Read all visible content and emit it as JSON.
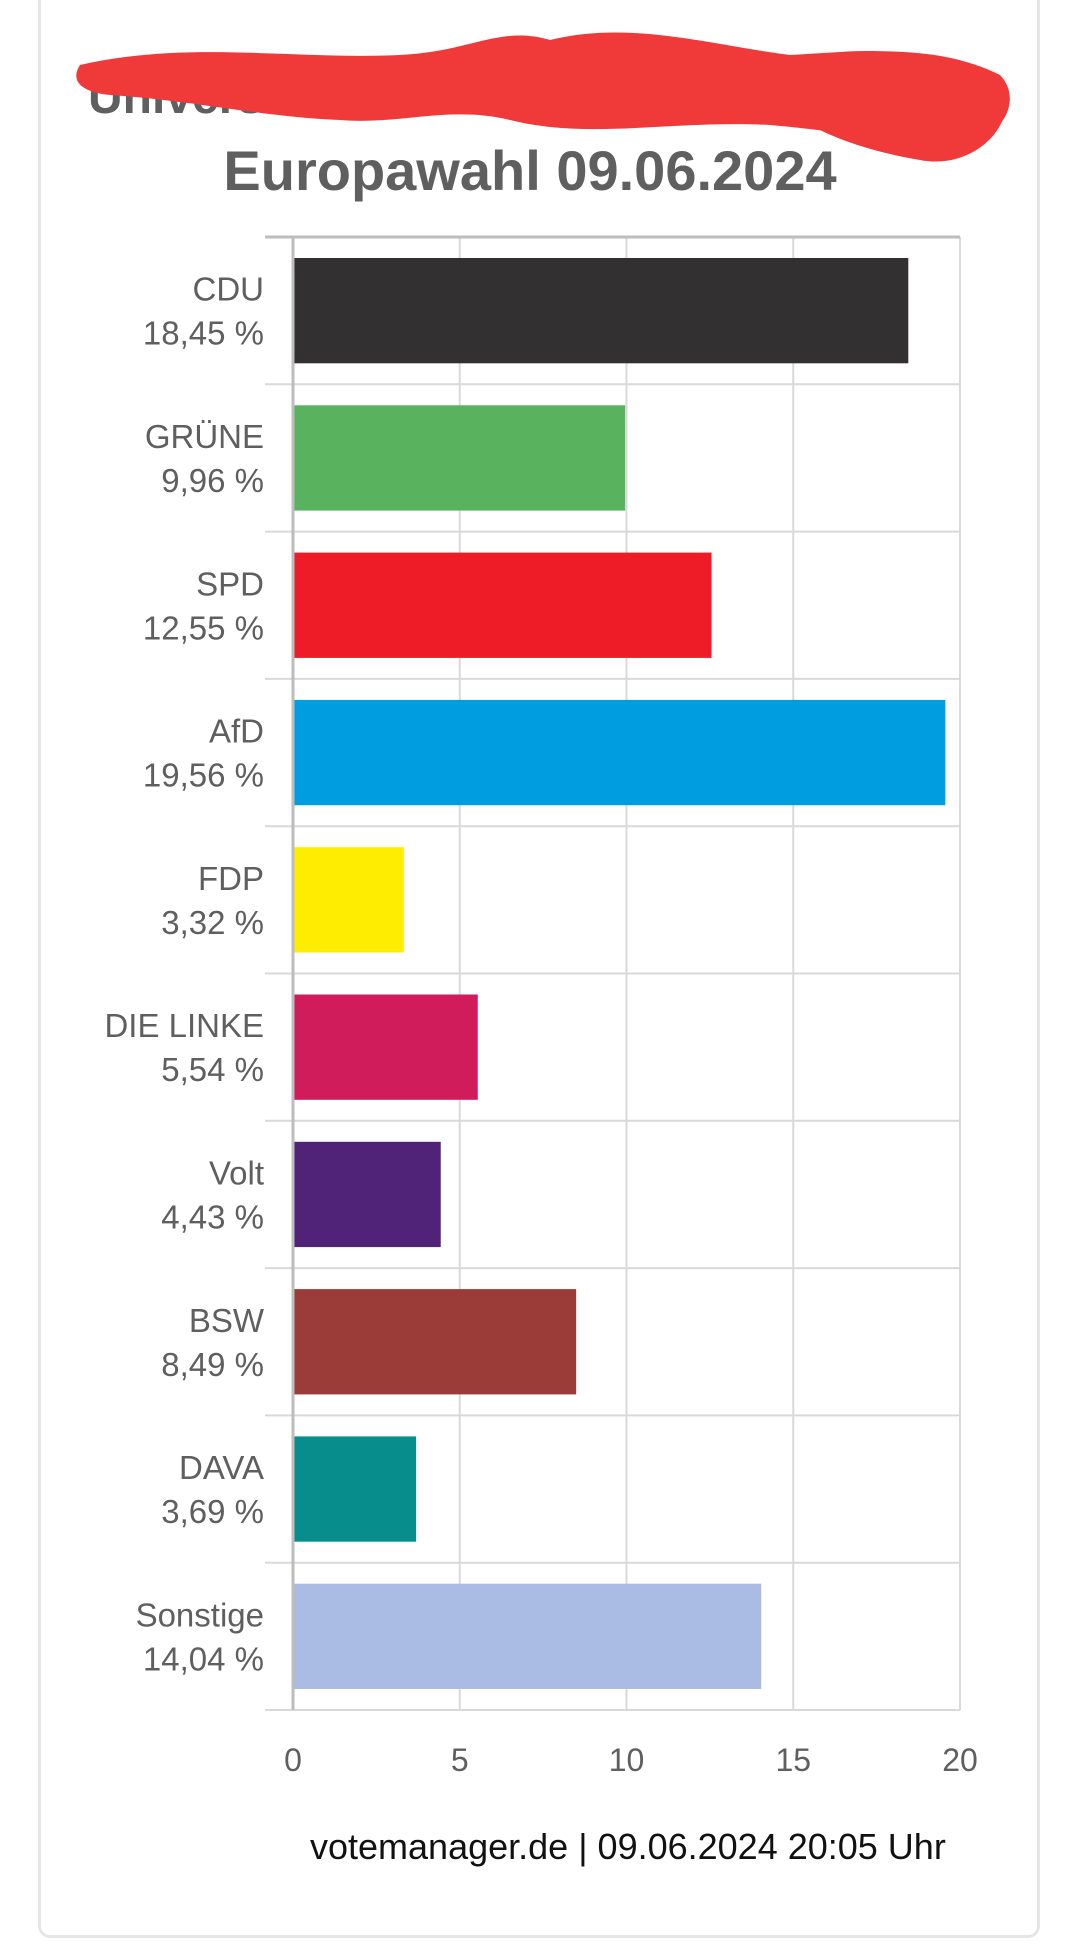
{
  "page": {
    "subtitle": "Universit",
    "title": "Europawahl 09.06.2024",
    "source": "votemanager.de | 09.06.2024 20:05 Uhr"
  },
  "chart_data": {
    "type": "bar",
    "orientation": "horizontal",
    "title": "Europawahl 09.06.2024",
    "categories": [
      "CDU",
      "GRÜNE",
      "SPD",
      "AfD",
      "FDP",
      "DIE LINKE",
      "Volt",
      "BSW",
      "DAVA",
      "Sonstige"
    ],
    "value_labels": [
      "18,45 %",
      "9,96 %",
      "12,55 %",
      "19,56 %",
      "3,32 %",
      "5,54 %",
      "4,43 %",
      "8,49 %",
      "3,69 %",
      "14,04 %"
    ],
    "values": [
      18.45,
      9.96,
      12.55,
      19.56,
      3.32,
      5.54,
      4.43,
      8.49,
      3.69,
      14.04
    ],
    "colors": [
      "#323031",
      "#58b25e",
      "#ed1c27",
      "#009ee0",
      "#ffed00",
      "#d01c5a",
      "#502379",
      "#9b3c39",
      "#078e8c",
      "#aabce4"
    ],
    "xticks": [
      "0",
      "5",
      "10",
      "15",
      "20"
    ],
    "xlim": [
      0,
      20
    ],
    "grid": true,
    "legend": "none"
  }
}
